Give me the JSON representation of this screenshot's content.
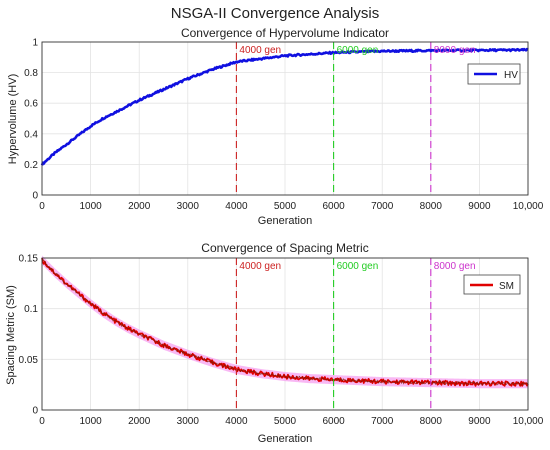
{
  "figure": {
    "title": "NSGA-II Convergence Analysis"
  },
  "chart_data": [
    {
      "type": "line",
      "title": "Convergence of Hypervolume Indicator",
      "xlabel": "Generation",
      "ylabel": "Hypervolume (HV)",
      "xlim": [
        0,
        10000
      ],
      "ylim": [
        0,
        1
      ],
      "xticks": [
        "0",
        "1000",
        "2000",
        "3000",
        "4000",
        "5000",
        "6000",
        "7000",
        "8000",
        "9000",
        "10,000"
      ],
      "yticks": [
        "0",
        "0.2",
        "0.4",
        "0.6",
        "0.8",
        "1"
      ],
      "grid": true,
      "legend_position": "top-right",
      "series": [
        {
          "name": "HV",
          "color": "#1010e0",
          "x": [
            0,
            250,
            500,
            750,
            1000,
            1250,
            1500,
            1750,
            2000,
            2500,
            3000,
            3500,
            4000,
            4500,
            5000,
            5500,
            6000,
            6500,
            7000,
            7500,
            8000,
            8500,
            9000,
            9500,
            10000
          ],
          "y": [
            0.2,
            0.27,
            0.33,
            0.39,
            0.45,
            0.5,
            0.54,
            0.58,
            0.62,
            0.69,
            0.76,
            0.82,
            0.87,
            0.89,
            0.91,
            0.92,
            0.93,
            0.935,
            0.94,
            0.942,
            0.944,
            0.945,
            0.946,
            0.947,
            0.948
          ]
        }
      ],
      "annotations": [
        {
          "x": 4000,
          "label": "4000 gen",
          "color": "#cc2222"
        },
        {
          "x": 6000,
          "label": "6000 gen",
          "color": "#22cc22"
        },
        {
          "x": 8000,
          "label": "8000 gen",
          "color": "#cc33cc"
        }
      ]
    },
    {
      "type": "line",
      "title": "Convergence of Spacing Metric",
      "xlabel": "Generation",
      "ylabel": "Spacing Metric (SM)",
      "xlim": [
        0,
        10000
      ],
      "ylim": [
        0,
        0.15
      ],
      "xticks": [
        "0",
        "1000",
        "2000",
        "3000",
        "4000",
        "5000",
        "6000",
        "7000",
        "8000",
        "9000",
        "10,000"
      ],
      "yticks": [
        "0",
        "0.05",
        "0.1",
        "0.15"
      ],
      "grid": true,
      "legend_position": "top-right",
      "series": [
        {
          "name": "SM",
          "color": "#e00000",
          "band_color": "#f5a0f0",
          "x": [
            0,
            250,
            500,
            750,
            1000,
            1250,
            1500,
            1750,
            2000,
            2500,
            3000,
            3500,
            4000,
            4500,
            5000,
            5500,
            6000,
            6500,
            7000,
            7500,
            8000,
            8500,
            9000,
            9500,
            10000
          ],
          "y": [
            0.148,
            0.136,
            0.125,
            0.115,
            0.105,
            0.096,
            0.088,
            0.081,
            0.075,
            0.064,
            0.055,
            0.047,
            0.04,
            0.036,
            0.033,
            0.031,
            0.03,
            0.029,
            0.028,
            0.0275,
            0.027,
            0.0265,
            0.026,
            0.026,
            0.026
          ]
        }
      ],
      "annotations": [
        {
          "x": 4000,
          "label": "4000 gen",
          "color": "#cc2222"
        },
        {
          "x": 6000,
          "label": "6000 gen",
          "color": "#22cc22"
        },
        {
          "x": 8000,
          "label": "8000 gen",
          "color": "#cc33cc"
        }
      ]
    }
  ]
}
